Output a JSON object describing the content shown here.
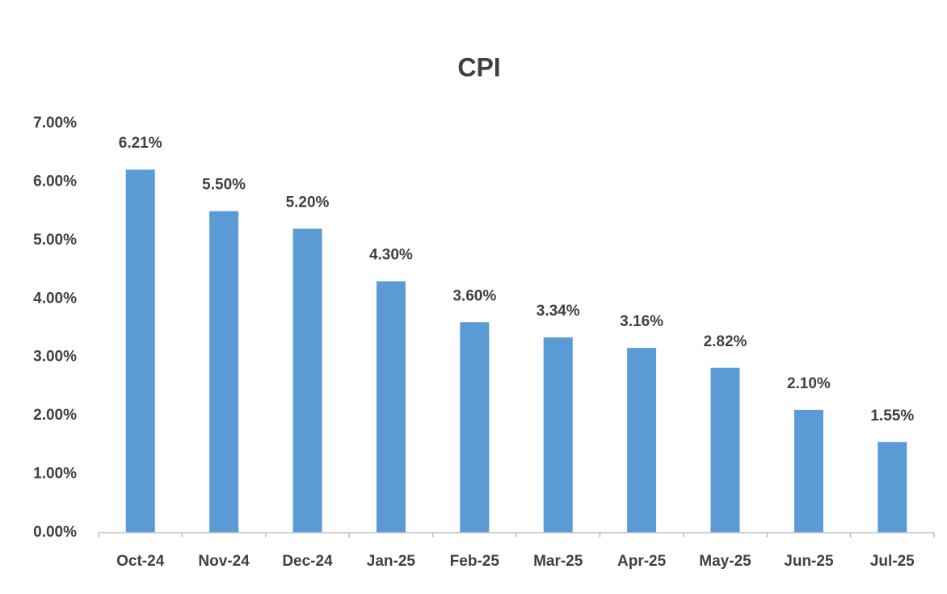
{
  "chart_data": {
    "type": "bar",
    "title": "CPI",
    "categories": [
      "Oct-24",
      "Nov-24",
      "Dec-24",
      "Jan-25",
      "Feb-25",
      "Mar-25",
      "Apr-25",
      "May-25",
      "Jun-25",
      "Jul-25"
    ],
    "values": [
      6.21,
      5.5,
      5.2,
      4.3,
      3.6,
      3.34,
      3.16,
      2.82,
      2.1,
      1.55
    ],
    "value_labels": [
      "6.21%",
      "5.50%",
      "5.20%",
      "4.30%",
      "3.60%",
      "3.34%",
      "3.16%",
      "2.82%",
      "2.10%",
      "1.55%"
    ],
    "color": "#5b9bd5",
    "ylim": [
      0,
      7
    ],
    "yticks": [
      {
        "value": 0,
        "label": "0.00%"
      },
      {
        "value": 1,
        "label": "1.00%"
      },
      {
        "value": 2,
        "label": "2.00%"
      },
      {
        "value": 3,
        "label": "3.00%"
      },
      {
        "value": 4,
        "label": "4.00%"
      },
      {
        "value": 5,
        "label": "5.00%"
      },
      {
        "value": 6,
        "label": "6.00%"
      },
      {
        "value": 7,
        "label": "7.00%"
      }
    ],
    "grid": false
  }
}
